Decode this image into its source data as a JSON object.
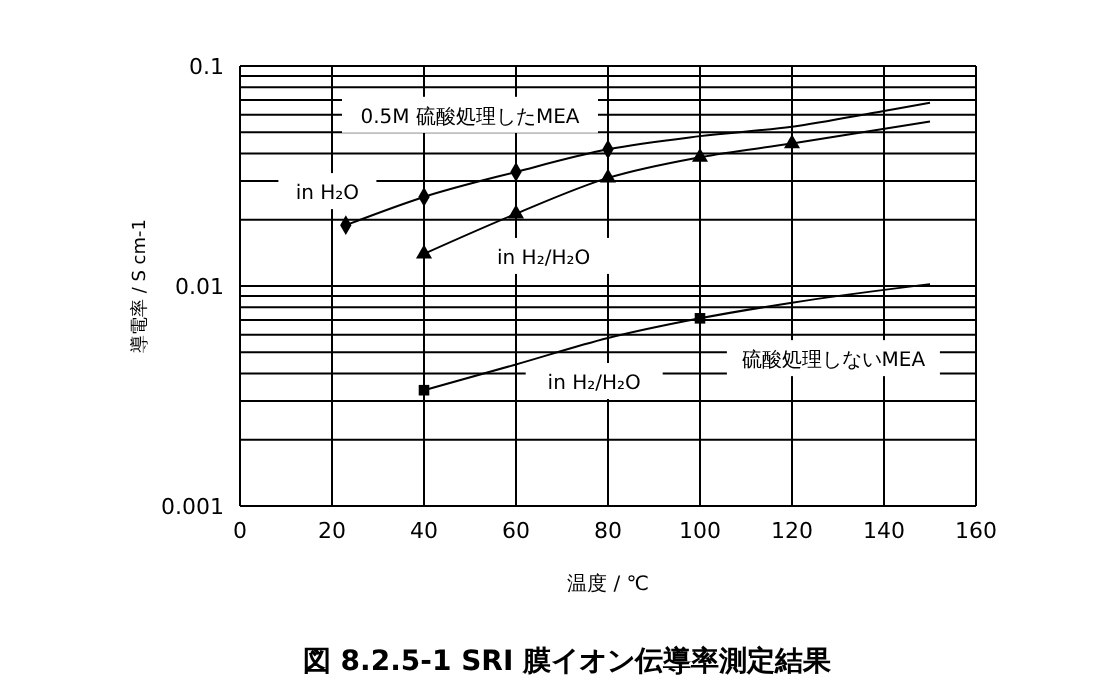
{
  "chart_data": {
    "type": "line",
    "title": "図 8.2.5-1 SRI 膜イオン伝導率測定結果",
    "xlabel": "温度 / ℃",
    "ylabel": "導電率 / S cm-1",
    "log": "y",
    "grid": true,
    "xlim": [
      0,
      160
    ],
    "xticks": [
      0,
      20,
      40,
      60,
      80,
      100,
      120,
      140,
      160
    ],
    "ylim": [
      0.001,
      0.1
    ],
    "yticks": [
      0.001,
      {
        "value": 0.002,
        "label": null
      },
      {
        "value": 0.003,
        "label": null
      },
      {
        "value": 0.004,
        "label": null
      },
      {
        "value": 0.005,
        "label": null
      },
      {
        "value": 0.006,
        "label": null
      },
      {
        "value": 0.007,
        "label": null
      },
      {
        "value": 0.008,
        "label": null
      },
      {
        "value": 0.009,
        "label": null
      },
      0.01,
      {
        "value": 0.02,
        "label": null
      },
      {
        "value": 0.03,
        "label": null
      },
      {
        "value": 0.04,
        "label": null
      },
      {
        "value": 0.05,
        "label": null
      },
      {
        "value": 0.06,
        "label": null
      },
      {
        "value": 0.07,
        "label": null
      },
      {
        "value": 0.08,
        "label": null
      },
      {
        "value": 0.09,
        "label": null
      },
      0.1
    ],
    "series": [
      {
        "name": "in H₂O",
        "color": "#000000",
        "marker": "none",
        "x": [
          23,
          40,
          60,
          80,
          100,
          120,
          140,
          150
        ],
        "values": [
          0.0189,
          0.0254,
          0.033,
          0.0418,
          0.048,
          0.053,
          0.0625,
          0.068
        ]
      },
      {
        "name": "in H₂/H₂O",
        "color": "#000000",
        "marker": "none",
        "x": [
          40,
          60,
          80,
          100,
          120,
          150
        ],
        "values": [
          0.014,
          0.0213,
          0.031,
          0.0385,
          0.0444,
          0.056
        ]
      },
      {
        "name": "in H₂/H₂O",
        "color": "#000000",
        "marker": "none",
        "x": [
          40,
          60,
          80,
          100,
          120,
          150
        ],
        "values": [
          0.00336,
          0.0044,
          0.0058,
          0.00713,
          0.0084,
          0.0102
        ]
      },
      {
        "type": "scatter",
        "color": "#000000",
        "marker": "diamond",
        "x": [
          23,
          40,
          60,
          80
        ],
        "values": [
          0.0189,
          0.0254,
          0.033,
          0.0418
        ]
      },
      {
        "type": "scatter",
        "color": "#000000",
        "marker": "triangle",
        "x": [
          40,
          60,
          80,
          100,
          120
        ],
        "values": [
          0.014,
          0.0213,
          0.031,
          0.0385,
          0.0444
        ]
      },
      {
        "type": "scatter",
        "color": "#000000",
        "marker": "square",
        "x": [
          40,
          100
        ],
        "values": [
          0.00336,
          0.00713
        ]
      }
    ],
    "annotations": [
      "0.5M 硫酸処理したMEA",
      "硫酸処理しないMEA"
    ]
  }
}
